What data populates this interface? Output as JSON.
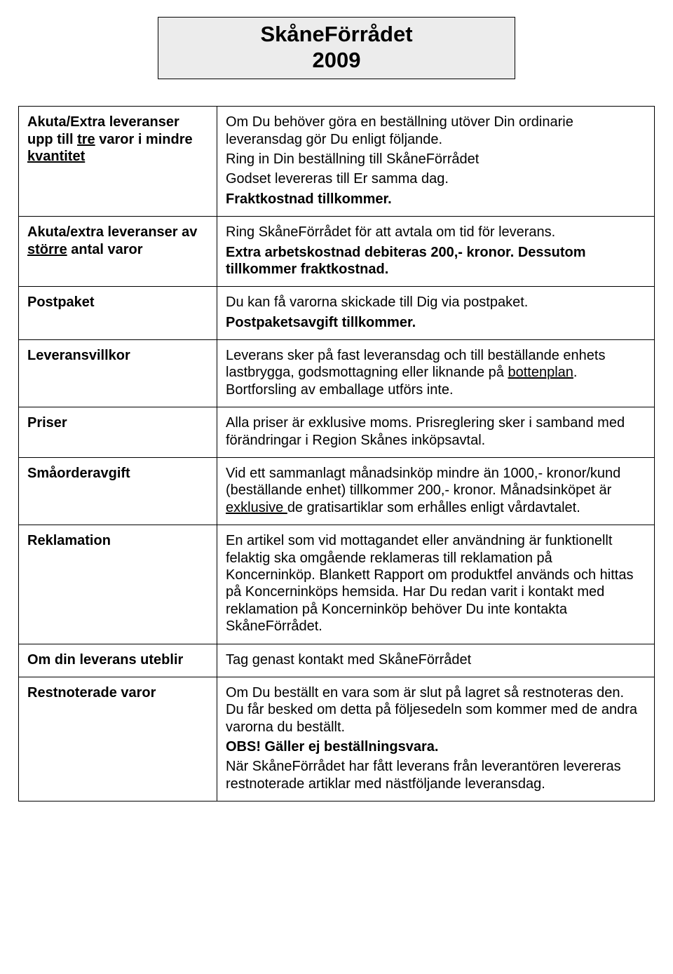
{
  "title": {
    "line1": "SkåneFörrådet",
    "line2": "2009"
  },
  "rows": [
    {
      "label": {
        "pre1": "Akuta/Extra leveranser upp till ",
        "u1": "tre",
        "mid1": " varor i mindre ",
        "u2": "kvantitet",
        "post1": ""
      },
      "body": {
        "p1": "Om Du behöver göra en beställning utöver Din ordinarie leveransdag gör Du enligt följande.",
        "p2": "Ring in Din beställning till SkåneFörrådet",
        "p3": "Godset levereras till Er samma dag.",
        "p4b": "Fraktkostnad tillkommer."
      }
    },
    {
      "label": {
        "pre1": "Akuta/extra leveranser av ",
        "u1": "större",
        "mid1": " antal varor",
        "u2": "",
        "post1": ""
      },
      "body": {
        "p1": "Ring SkåneFörrådet för att avtala om tid för leverans.",
        "p2b": "Extra arbetskostnad debiteras 200,- kronor. Dessutom tillkommer fraktkostnad."
      }
    },
    {
      "labelPlain": "Postpaket",
      "body": {
        "p1": "Du kan få varorna skickade till Dig via postpaket.",
        "p2b": "Postpaketsavgift tillkommer."
      }
    },
    {
      "labelPlain": "Leveransvillkor",
      "body": {
        "seg1": "Leverans sker på fast leveransdag och till beställande enhets lastbrygga, godsmottagning eller liknande på ",
        "seg_u": "bottenplan",
        "seg2": ". Bortforsling av emballage utförs inte."
      }
    },
    {
      "labelPlain": "Priser",
      "body": {
        "p1": "Alla priser är exklusive moms. Prisreglering sker i samband med förändringar i Region Skånes inköpsavtal."
      }
    },
    {
      "labelPlain": "Småorderavgift",
      "body": {
        "seg1": "Vid ett sammanlagt månadsinköp mindre än 1000,- kronor/kund (beställande enhet) tillkommer 200,- kronor. Månadsinköpet är ",
        "seg_u": "exklusive ",
        "seg2": "de gratisartiklar som erhålles enligt vårdavtalet."
      }
    },
    {
      "labelPlain": "Reklamation",
      "body": {
        "p1": "En artikel som vid mottagandet eller användning är funktionellt felaktig ska omgående reklameras till reklamation på Koncerninköp. Blankett Rapport om produktfel används och hittas på Koncerninköps hemsida. Har Du redan varit i kontakt med reklamation på Koncerninköp behöver Du inte kontakta SkåneFörrådet."
      }
    },
    {
      "labelPlain": "Om din leverans uteblir",
      "body": {
        "p1": "Tag genast kontakt med SkåneFörrådet"
      }
    },
    {
      "labelPlain": "Restnoterade varor",
      "body": {
        "p1": "Om Du beställt en vara som är slut på lagret så restnoteras den. Du får besked om detta på följesedeln som kommer med de andra varorna du beställt.",
        "p2b": "OBS! Gäller ej beställningsvara.",
        "p3": "När SkåneFörrådet har fått leverans från leverantören levereras restnoterade artiklar med nästföljande leveransdag."
      }
    }
  ]
}
